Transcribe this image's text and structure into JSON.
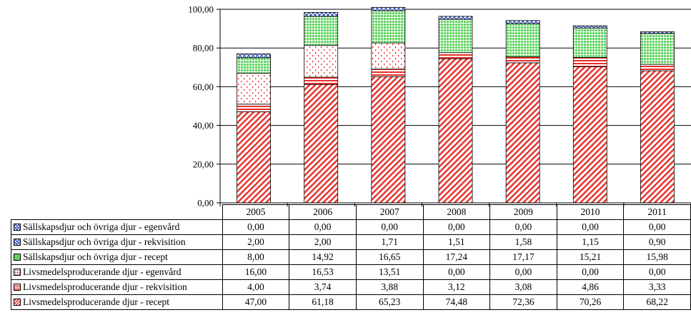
{
  "chart_data": {
    "type": "bar",
    "stacked": true,
    "categories": [
      "2005",
      "2006",
      "2007",
      "2008",
      "2009",
      "2010",
      "2011"
    ],
    "ylim": [
      0,
      100
    ],
    "yticks": [
      "0,00",
      "20,00",
      "40,00",
      "60,00",
      "80,00",
      "100,00"
    ],
    "grid": true,
    "legend_placement": "data table below chart",
    "series": [
      {
        "name": "Livsmedelsproducerande djur - recept",
        "values": [
          47.0,
          61.18,
          65.23,
          74.48,
          72.36,
          70.26,
          68.22
        ],
        "color": "#e8302a",
        "pattern": "diagonal-stripes"
      },
      {
        "name": "Livsmedelsproducerande djur - rekvisition",
        "values": [
          4.0,
          3.74,
          3.88,
          3.12,
          3.08,
          4.86,
          3.33
        ],
        "color": "#e8302a",
        "pattern": "horizontal-stripes"
      },
      {
        "name": "Livsmedelsproducerande djur - egenvård",
        "values": [
          16.0,
          16.53,
          13.51,
          0.0,
          0.0,
          0.0,
          0.0
        ],
        "color": "#e8302a",
        "pattern": "dots"
      },
      {
        "name": "Sällskapsdjur och övriga djur - recept",
        "values": [
          8.0,
          14.92,
          16.65,
          17.24,
          17.17,
          15.21,
          15.98
        ],
        "color": "#5fd35f",
        "pattern": "grid"
      },
      {
        "name": "Sällskapsdjur och övriga djur - rekvisition",
        "values": [
          2.0,
          2.0,
          1.71,
          1.51,
          1.58,
          1.15,
          0.9
        ],
        "color": "#3050c0",
        "pattern": "crosshatch"
      },
      {
        "name": "Sällskapsdjur och övriga djur - egenvård",
        "values": [
          0.0,
          0.0,
          0.0,
          0.0,
          0.0,
          0.0,
          0.0
        ],
        "color": "#3050c0",
        "pattern": "crosshatch"
      }
    ],
    "table": {
      "rows": [
        {
          "label": "Sällskapsdjur och övriga djur - egenvård",
          "values": [
            "0,00",
            "0,00",
            "0,00",
            "0,00",
            "0,00",
            "0,00",
            "0,00"
          ]
        },
        {
          "label": "Sällskapsdjur och övriga djur - rekvisition",
          "values": [
            "2,00",
            "2,00",
            "1,71",
            "1,51",
            "1,58",
            "1,15",
            "0,90"
          ]
        },
        {
          "label": "Sällskapsdjur och övriga djur - recept",
          "values": [
            "8,00",
            "14,92",
            "16,65",
            "17,24",
            "17,17",
            "15,21",
            "15,98"
          ]
        },
        {
          "label": "Livsmedelsproducerande djur - egenvård",
          "values": [
            "16,00",
            "16,53",
            "13,51",
            "0,00",
            "0,00",
            "0,00",
            "0,00"
          ]
        },
        {
          "label": "Livsmedelsproducerande djur - rekvisition",
          "values": [
            "4,00",
            "3,74",
            "3,88",
            "3,12",
            "3,08",
            "4,86",
            "3,33"
          ]
        },
        {
          "label": "Livsmedelsproducerande djur - recept",
          "values": [
            "47,00",
            "61,18",
            "65,23",
            "74,48",
            "72,36",
            "70,26",
            "68,22"
          ]
        }
      ]
    }
  }
}
